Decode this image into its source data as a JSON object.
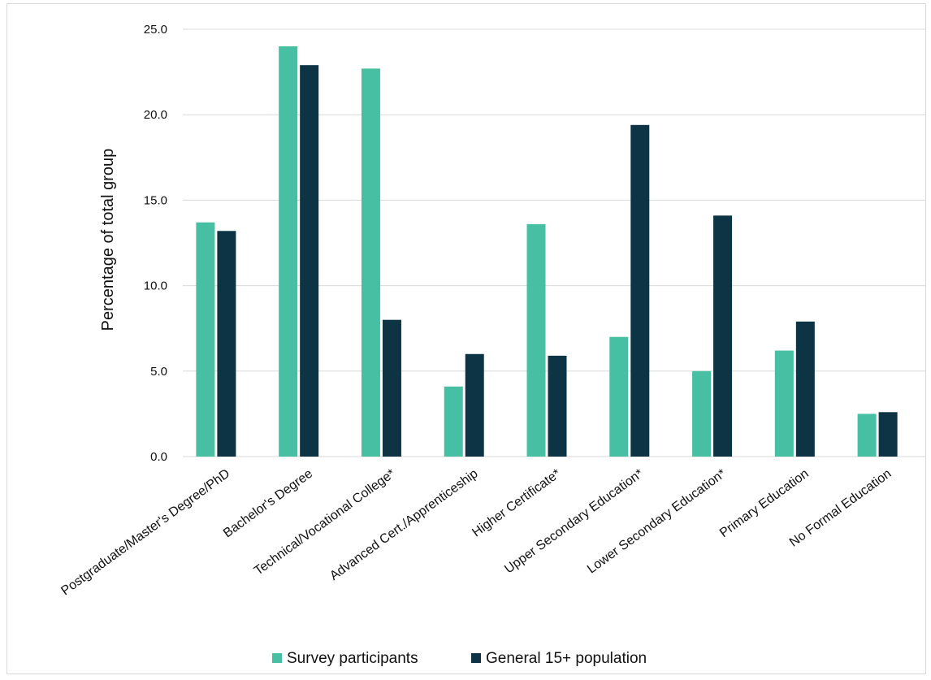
{
  "chart_data": {
    "type": "bar",
    "title": "",
    "xlabel": "",
    "ylabel": "Percentage of total group",
    "ylim": [
      0,
      25
    ],
    "yticks": [
      "0.0",
      "5.0",
      "10.0",
      "15.0",
      "20.0",
      "25.0"
    ],
    "grid": true,
    "legend_position": "bottom",
    "categories": [
      "Postgraduate/Master's Degree/PhD",
      "Bachelor's Degree",
      "Technical/Vocational College*",
      "Advanced Cert./Apprenticeship",
      "Higher Certificate*",
      "Upper Secondary Education*",
      "Lower Secondary Education*",
      "Primary Education",
      "No Formal Education"
    ],
    "series": [
      {
        "name": "Survey participants",
        "color": "#47bfa2",
        "values": [
          13.7,
          24.0,
          22.7,
          4.1,
          13.6,
          7.0,
          5.0,
          6.2,
          2.5
        ]
      },
      {
        "name": "General 15+ population",
        "color": "#0c3444",
        "values": [
          13.2,
          22.9,
          8.0,
          6.0,
          5.9,
          19.4,
          14.1,
          7.9,
          2.6
        ]
      }
    ]
  }
}
